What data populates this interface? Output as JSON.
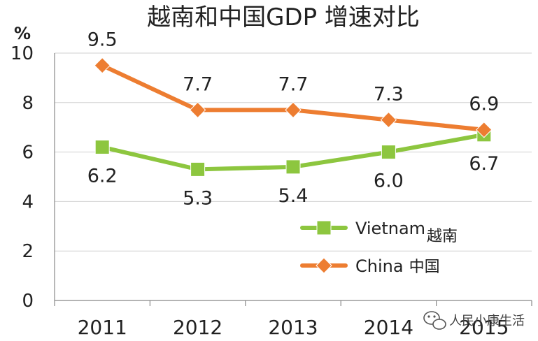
{
  "chart_data": {
    "type": "line",
    "title": "越南和中国GDP 增速对比",
    "ylabel": "%",
    "xlabel": "",
    "ylim": [
      0,
      10
    ],
    "yticks": [
      0,
      2,
      4,
      6,
      8,
      10
    ],
    "categories": [
      "2011",
      "2012",
      "2013",
      "2014",
      "2015"
    ],
    "legend_position": "bottom-right",
    "series": [
      {
        "name": "Vietnam",
        "name_cn": "越南",
        "values": [
          6.2,
          5.3,
          5.4,
          6.0,
          6.7
        ],
        "labels": [
          "6.2",
          "5.3",
          "5.4",
          "6.0",
          "6.7"
        ],
        "color": "#8dc63f",
        "marker": "square"
      },
      {
        "name": "China",
        "name_cn": "中国",
        "values": [
          9.5,
          7.7,
          7.7,
          7.3,
          6.9
        ],
        "labels": [
          "9.5",
          "7.7",
          "7.7",
          "7.3",
          "6.9"
        ],
        "color": "#ed7d31",
        "marker": "diamond"
      }
    ]
  },
  "watermark": {
    "text": "人民小康生活",
    "icon": "wechat-icon"
  }
}
